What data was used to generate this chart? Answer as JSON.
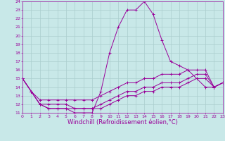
{
  "title": "",
  "xlabel": "Windchill (Refroidissement éolien,°C)",
  "x": [
    0,
    1,
    2,
    3,
    4,
    5,
    6,
    7,
    8,
    9,
    10,
    11,
    12,
    13,
    14,
    15,
    16,
    17,
    18,
    19,
    20,
    21,
    22,
    23
  ],
  "series": [
    [
      15.0,
      13.5,
      12.0,
      11.5,
      11.5,
      11.5,
      11.0,
      11.0,
      11.0,
      13.5,
      18.0,
      21.0,
      23.0,
      23.0,
      24.0,
      22.5,
      19.5,
      17.0,
      16.5,
      16.0,
      15.0,
      14.0,
      14.0,
      14.5
    ],
    [
      15.0,
      13.5,
      12.5,
      12.5,
      12.5,
      12.5,
      12.5,
      12.5,
      12.5,
      13.0,
      13.5,
      14.0,
      14.5,
      14.5,
      15.0,
      15.0,
      15.5,
      15.5,
      15.5,
      16.0,
      16.0,
      16.0,
      14.0,
      14.5
    ],
    [
      15.0,
      13.5,
      12.0,
      12.0,
      12.0,
      12.0,
      11.5,
      11.5,
      11.5,
      12.0,
      12.5,
      13.0,
      13.5,
      13.5,
      14.0,
      14.0,
      14.5,
      14.5,
      14.5,
      15.0,
      15.5,
      15.5,
      14.0,
      14.5
    ],
    [
      15.0,
      13.5,
      12.0,
      11.5,
      11.5,
      11.5,
      11.5,
      11.5,
      11.5,
      11.5,
      12.0,
      12.5,
      13.0,
      13.0,
      13.5,
      13.5,
      14.0,
      14.0,
      14.0,
      14.5,
      15.0,
      15.0,
      14.0,
      14.5
    ]
  ],
  "line_color": "#990099",
  "bg_color": "#c8e8e8",
  "grid_color": "#aacece",
  "ylim": [
    11,
    24
  ],
  "xlim": [
    0,
    23
  ],
  "yticks": [
    11,
    12,
    13,
    14,
    15,
    16,
    17,
    18,
    19,
    20,
    21,
    22,
    23,
    24
  ],
  "xticks": [
    0,
    1,
    2,
    3,
    4,
    5,
    6,
    7,
    8,
    9,
    10,
    11,
    12,
    13,
    14,
    15,
    16,
    17,
    18,
    19,
    20,
    21,
    22,
    23
  ],
  "tick_fontsize": 4.5,
  "xlabel_fontsize": 6.0,
  "marker": "+"
}
